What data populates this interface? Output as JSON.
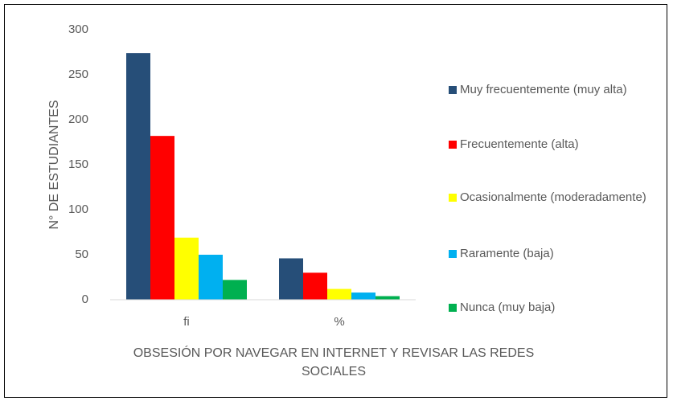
{
  "chart_data": {
    "type": "bar",
    "x_label": "OBSESIÓN POR NAVEGAR EN INTERNET Y REVISAR LAS REDES SOCIALES",
    "y_label": "N° DE ESTUDIANTES",
    "categories": [
      "fi",
      "%"
    ],
    "series": [
      {
        "name": "Muy frecuentemente (muy alta)",
        "color": "#264e78",
        "values": [
          274,
          46
        ]
      },
      {
        "name": "Frecuentemente (alta)",
        "color": "#ff0000",
        "values": [
          182,
          30
        ]
      },
      {
        "name": "Ocasionalmente (moderadamente)",
        "color": "#ffff00",
        "values": [
          69,
          12
        ]
      },
      {
        "name": "Raramente (baja)",
        "color": "#00b0f0",
        "values": [
          50,
          8
        ]
      },
      {
        "name": "Nunca (muy baja)",
        "color": "#00b050",
        "values": [
          22,
          4
        ]
      }
    ],
    "ylim": [
      0,
      300
    ],
    "yticks": [
      0,
      50,
      100,
      150,
      200,
      250,
      300
    ],
    "grid": false,
    "legend": "right"
  }
}
